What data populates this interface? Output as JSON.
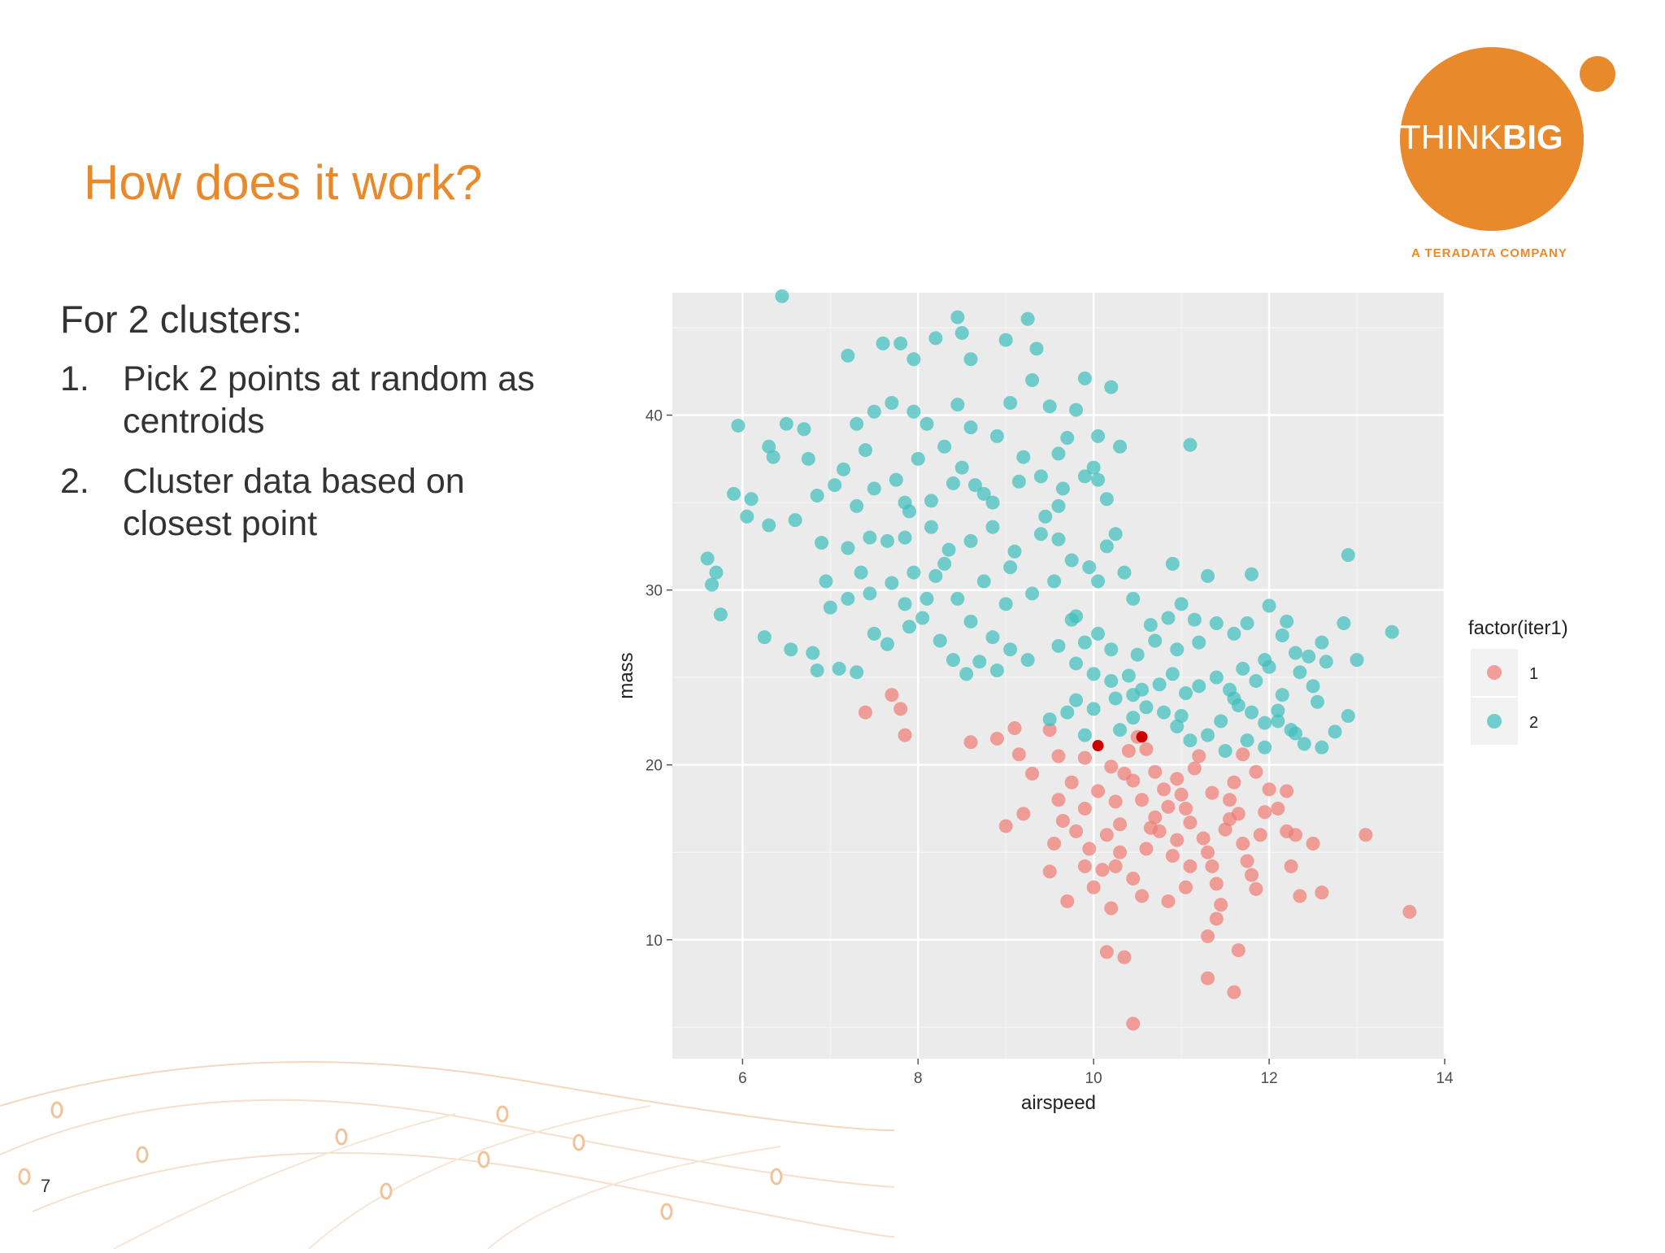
{
  "slide": {
    "title": "How does it work?",
    "heading": "For 2 clusters:",
    "bullets": [
      {
        "num": "1.",
        "text": "Pick 2 points at random as centroids"
      },
      {
        "num": "2.",
        "text": "Cluster data based on closest point"
      }
    ],
    "page_number": "7"
  },
  "logo": {
    "text_light": "THINK",
    "text_bold": "BIG",
    "tagline": "A TERADATA COMPANY",
    "color": "#e8892b"
  },
  "chart_data": {
    "type": "scatter",
    "title": "",
    "xlabel": "airspeed",
    "ylabel": "mass",
    "xlim": [
      5.2,
      14.0
    ],
    "ylim": [
      3.2,
      47.0
    ],
    "x_ticks": [
      6,
      8,
      10,
      12,
      14
    ],
    "y_ticks": [
      10,
      20,
      30,
      40
    ],
    "grid": true,
    "legend": {
      "title": "factor(iter1)",
      "position": "right"
    },
    "colors": {
      "1": "#f07b75",
      "2": "#3fbfbc",
      "centroid": "#cc0000",
      "panel": "#ebebeb"
    },
    "series": [
      {
        "name": "1",
        "color": "#f07b75",
        "points": [
          [
            7.4,
            23.0
          ],
          [
            7.7,
            24.0
          ],
          [
            7.8,
            23.2
          ],
          [
            7.85,
            21.7
          ],
          [
            8.6,
            21.3
          ],
          [
            9.1,
            22.1
          ],
          [
            9.15,
            20.6
          ],
          [
            9.5,
            22.0
          ],
          [
            9.3,
            19.5
          ],
          [
            9.6,
            20.5
          ],
          [
            9.9,
            20.4
          ],
          [
            9.75,
            19.0
          ],
          [
            9.6,
            18.0
          ],
          [
            9.65,
            16.8
          ],
          [
            9.8,
            16.2
          ],
          [
            9.95,
            15.2
          ],
          [
            9.9,
            14.2
          ],
          [
            9.55,
            15.5
          ],
          [
            9.5,
            13.9
          ],
          [
            9.7,
            12.2
          ],
          [
            10.0,
            13.0
          ],
          [
            10.2,
            11.8
          ],
          [
            10.1,
            14.0
          ],
          [
            10.3,
            15.0
          ],
          [
            10.05,
            18.5
          ],
          [
            10.25,
            17.9
          ],
          [
            10.35,
            19.5
          ],
          [
            10.4,
            20.8
          ],
          [
            10.5,
            21.6
          ],
          [
            10.6,
            20.9
          ],
          [
            10.55,
            18.0
          ],
          [
            10.7,
            17.0
          ],
          [
            10.75,
            16.2
          ],
          [
            10.6,
            15.2
          ],
          [
            10.45,
            13.5
          ],
          [
            10.55,
            12.5
          ],
          [
            10.85,
            12.2
          ],
          [
            10.95,
            19.2
          ],
          [
            11.0,
            18.3
          ],
          [
            11.05,
            17.5
          ],
          [
            11.1,
            16.7
          ],
          [
            11.15,
            19.8
          ],
          [
            11.2,
            20.5
          ],
          [
            11.25,
            15.8
          ],
          [
            11.3,
            15.0
          ],
          [
            11.35,
            14.2
          ],
          [
            11.4,
            13.2
          ],
          [
            11.45,
            12.0
          ],
          [
            11.5,
            16.3
          ],
          [
            11.55,
            18.0
          ],
          [
            11.6,
            19.0
          ],
          [
            11.65,
            17.2
          ],
          [
            11.7,
            15.5
          ],
          [
            11.75,
            14.5
          ],
          [
            11.8,
            13.7
          ],
          [
            11.9,
            16.0
          ],
          [
            12.0,
            18.6
          ],
          [
            12.1,
            17.5
          ],
          [
            12.2,
            16.2
          ],
          [
            12.25,
            14.2
          ],
          [
            12.35,
            12.5
          ],
          [
            12.5,
            15.5
          ],
          [
            12.6,
            12.7
          ],
          [
            12.2,
            18.5
          ],
          [
            13.1,
            16.0
          ],
          [
            13.6,
            11.6
          ],
          [
            11.3,
            10.2
          ],
          [
            11.4,
            11.2
          ],
          [
            11.65,
            9.4
          ],
          [
            11.3,
            7.8
          ],
          [
            11.6,
            7.0
          ],
          [
            10.15,
            9.3
          ],
          [
            10.35,
            9.0
          ],
          [
            10.45,
            5.2
          ],
          [
            11.05,
            13.0
          ],
          [
            10.9,
            14.8
          ],
          [
            10.8,
            18.6
          ],
          [
            10.3,
            16.6
          ],
          [
            10.15,
            16.0
          ],
          [
            9.9,
            17.5
          ],
          [
            10.45,
            19.1
          ],
          [
            11.85,
            19.6
          ],
          [
            11.95,
            17.3
          ],
          [
            12.3,
            16.0
          ],
          [
            9.2,
            17.2
          ],
          [
            9.0,
            16.5
          ],
          [
            8.9,
            21.5
          ],
          [
            11.7,
            20.6
          ],
          [
            11.35,
            18.4
          ],
          [
            10.85,
            17.6
          ],
          [
            10.65,
            16.4
          ],
          [
            10.95,
            15.7
          ],
          [
            11.55,
            16.9
          ],
          [
            10.2,
            19.9
          ],
          [
            10.7,
            19.6
          ],
          [
            10.25,
            14.2
          ],
          [
            11.1,
            14.2
          ],
          [
            11.85,
            12.9
          ]
        ]
      },
      {
        "name": "2",
        "color": "#3fbfbc",
        "points": [
          [
            6.45,
            46.8
          ],
          [
            8.45,
            45.6
          ],
          [
            8.2,
            44.4
          ],
          [
            8.5,
            44.7
          ],
          [
            9.25,
            45.5
          ],
          [
            7.6,
            44.1
          ],
          [
            7.8,
            44.1
          ],
          [
            7.2,
            43.4
          ],
          [
            7.95,
            43.2
          ],
          [
            8.6,
            43.2
          ],
          [
            9.35,
            43.8
          ],
          [
            9.0,
            44.3
          ],
          [
            9.9,
            42.1
          ],
          [
            10.2,
            41.6
          ],
          [
            6.7,
            39.2
          ],
          [
            6.5,
            39.5
          ],
          [
            6.3,
            38.2
          ],
          [
            5.95,
            39.4
          ],
          [
            7.3,
            39.5
          ],
          [
            7.5,
            40.2
          ],
          [
            7.7,
            40.7
          ],
          [
            7.95,
            40.2
          ],
          [
            8.1,
            39.5
          ],
          [
            8.3,
            38.2
          ],
          [
            8.45,
            40.6
          ],
          [
            8.6,
            39.3
          ],
          [
            8.9,
            38.8
          ],
          [
            9.05,
            40.7
          ],
          [
            9.3,
            42.0
          ],
          [
            9.5,
            40.5
          ],
          [
            9.8,
            40.3
          ],
          [
            10.05,
            38.8
          ],
          [
            10.3,
            38.2
          ],
          [
            9.7,
            38.7
          ],
          [
            11.1,
            38.3
          ],
          [
            6.1,
            35.2
          ],
          [
            5.9,
            35.5
          ],
          [
            6.05,
            34.2
          ],
          [
            6.3,
            33.7
          ],
          [
            6.6,
            34.0
          ],
          [
            6.85,
            35.4
          ],
          [
            7.05,
            36.0
          ],
          [
            7.3,
            34.8
          ],
          [
            7.5,
            35.8
          ],
          [
            7.75,
            36.3
          ],
          [
            7.9,
            34.5
          ],
          [
            8.15,
            35.1
          ],
          [
            8.4,
            36.1
          ],
          [
            8.65,
            36.0
          ],
          [
            8.85,
            35.0
          ],
          [
            9.15,
            36.2
          ],
          [
            9.4,
            36.5
          ],
          [
            9.65,
            35.8
          ],
          [
            9.9,
            36.5
          ],
          [
            10.05,
            36.3
          ],
          [
            10.15,
            35.2
          ],
          [
            9.6,
            34.8
          ],
          [
            5.6,
            31.8
          ],
          [
            5.7,
            31.0
          ],
          [
            5.65,
            30.3
          ],
          [
            5.75,
            28.6
          ],
          [
            6.25,
            27.3
          ],
          [
            6.55,
            26.6
          ],
          [
            6.8,
            26.4
          ],
          [
            6.85,
            25.4
          ],
          [
            7.1,
            25.5
          ],
          [
            7.3,
            25.3
          ],
          [
            7.5,
            27.5
          ],
          [
            7.65,
            26.9
          ],
          [
            7.9,
            27.9
          ],
          [
            8.05,
            28.4
          ],
          [
            8.25,
            27.1
          ],
          [
            8.4,
            26.0
          ],
          [
            8.55,
            25.2
          ],
          [
            8.7,
            25.9
          ],
          [
            8.9,
            25.4
          ],
          [
            9.05,
            26.6
          ],
          [
            9.25,
            26.0
          ],
          [
            7.0,
            29.0
          ],
          [
            7.2,
            29.5
          ],
          [
            7.45,
            29.8
          ],
          [
            7.7,
            30.4
          ],
          [
            7.95,
            31.0
          ],
          [
            8.2,
            30.8
          ],
          [
            8.45,
            29.5
          ],
          [
            8.6,
            28.2
          ],
          [
            8.75,
            30.5
          ],
          [
            9.05,
            31.3
          ],
          [
            9.3,
            29.8
          ],
          [
            9.55,
            30.5
          ],
          [
            9.75,
            31.7
          ],
          [
            9.95,
            31.3
          ],
          [
            9.8,
            28.5
          ],
          [
            6.9,
            32.7
          ],
          [
            7.2,
            32.4
          ],
          [
            7.45,
            33.0
          ],
          [
            7.65,
            32.8
          ],
          [
            7.85,
            33.0
          ],
          [
            8.15,
            33.6
          ],
          [
            8.35,
            32.3
          ],
          [
            8.6,
            32.8
          ],
          [
            8.85,
            33.6
          ],
          [
            9.1,
            32.2
          ],
          [
            9.4,
            33.2
          ],
          [
            9.6,
            32.9
          ],
          [
            10.15,
            32.5
          ],
          [
            9.75,
            28.3
          ],
          [
            9.9,
            27.0
          ],
          [
            10.05,
            27.5
          ],
          [
            10.2,
            26.6
          ],
          [
            10.5,
            26.3
          ],
          [
            10.7,
            27.1
          ],
          [
            10.85,
            28.4
          ],
          [
            11.0,
            29.2
          ],
          [
            11.15,
            28.3
          ],
          [
            11.4,
            28.1
          ],
          [
            11.6,
            27.5
          ],
          [
            11.75,
            28.1
          ],
          [
            12.0,
            29.1
          ],
          [
            12.15,
            27.4
          ],
          [
            12.3,
            26.4
          ],
          [
            12.45,
            26.2
          ],
          [
            12.6,
            27.0
          ],
          [
            12.85,
            28.1
          ],
          [
            12.9,
            32.0
          ],
          [
            13.4,
            27.6
          ],
          [
            13.0,
            26.0
          ],
          [
            10.0,
            25.2
          ],
          [
            10.2,
            24.8
          ],
          [
            10.4,
            25.1
          ],
          [
            10.55,
            24.3
          ],
          [
            10.75,
            24.6
          ],
          [
            10.9,
            25.2
          ],
          [
            11.05,
            24.1
          ],
          [
            11.2,
            24.5
          ],
          [
            11.4,
            25.0
          ],
          [
            11.55,
            24.3
          ],
          [
            11.7,
            25.5
          ],
          [
            11.85,
            24.8
          ],
          [
            12.0,
            25.6
          ],
          [
            12.15,
            24.0
          ],
          [
            12.35,
            25.3
          ],
          [
            12.5,
            24.5
          ],
          [
            12.65,
            25.9
          ],
          [
            9.8,
            23.7
          ],
          [
            10.0,
            23.2
          ],
          [
            10.25,
            23.8
          ],
          [
            10.45,
            22.7
          ],
          [
            10.6,
            23.3
          ],
          [
            10.8,
            23.0
          ],
          [
            10.95,
            22.2
          ],
          [
            11.1,
            21.4
          ],
          [
            11.3,
            21.7
          ],
          [
            11.45,
            22.5
          ],
          [
            11.65,
            23.4
          ],
          [
            11.8,
            23.0
          ],
          [
            11.95,
            22.4
          ],
          [
            12.1,
            23.1
          ],
          [
            12.25,
            22.0
          ],
          [
            12.4,
            21.2
          ],
          [
            12.6,
            21.0
          ],
          [
            12.9,
            22.8
          ],
          [
            9.5,
            22.6
          ],
          [
            9.7,
            23.0
          ],
          [
            9.9,
            21.7
          ],
          [
            10.3,
            22.0
          ],
          [
            11.5,
            20.8
          ],
          [
            11.75,
            21.4
          ],
          [
            11.95,
            21.0
          ],
          [
            12.1,
            22.5
          ],
          [
            12.3,
            21.8
          ],
          [
            12.55,
            23.6
          ],
          [
            10.05,
            30.5
          ],
          [
            10.65,
            28.0
          ],
          [
            10.9,
            31.5
          ],
          [
            11.3,
            30.8
          ],
          [
            11.8,
            30.9
          ],
          [
            8.75,
            35.5
          ],
          [
            8.0,
            37.5
          ],
          [
            7.4,
            38.0
          ],
          [
            6.75,
            37.5
          ],
          [
            9.6,
            37.8
          ],
          [
            10.0,
            37.0
          ],
          [
            7.15,
            36.9
          ],
          [
            8.5,
            37.0
          ],
          [
            9.2,
            37.6
          ],
          [
            7.85,
            29.2
          ],
          [
            8.85,
            27.3
          ],
          [
            6.35,
            37.6
          ],
          [
            10.25,
            33.2
          ],
          [
            10.45,
            29.5
          ],
          [
            10.35,
            31.0
          ],
          [
            9.6,
            26.8
          ],
          [
            9.8,
            25.8
          ],
          [
            11.95,
            26.0
          ],
          [
            11.2,
            27.0
          ],
          [
            10.95,
            26.6
          ],
          [
            12.2,
            28.2
          ],
          [
            12.75,
            21.9
          ],
          [
            11.0,
            22.8
          ],
          [
            10.45,
            24.0
          ],
          [
            11.6,
            23.8
          ],
          [
            7.85,
            35.0
          ],
          [
            8.3,
            31.5
          ],
          [
            7.35,
            31.0
          ],
          [
            6.95,
            30.5
          ],
          [
            8.1,
            29.5
          ],
          [
            9.0,
            29.2
          ],
          [
            9.45,
            34.2
          ]
        ]
      }
    ],
    "centroids": [
      [
        10.05,
        21.1
      ],
      [
        10.55,
        21.6
      ]
    ]
  }
}
